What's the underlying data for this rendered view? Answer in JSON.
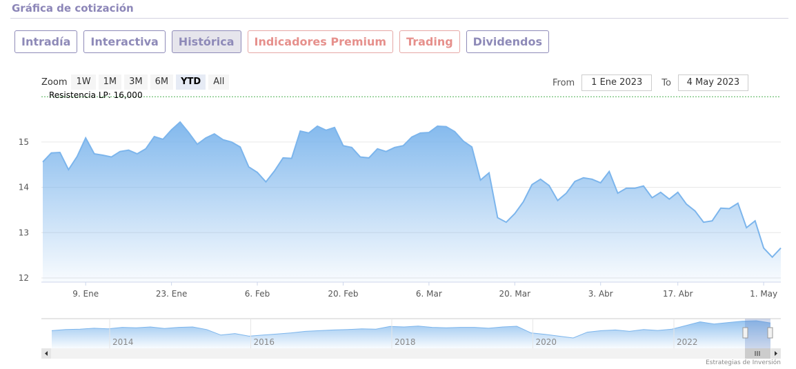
{
  "header": {
    "title": "Gráfica de cotización"
  },
  "tabs": [
    {
      "label": "Intradía",
      "state": "normal"
    },
    {
      "label": "Interactiva",
      "state": "normal"
    },
    {
      "label": "Histórica",
      "state": "active"
    },
    {
      "label": "Indicadores Premium",
      "state": "premium"
    },
    {
      "label": "Trading",
      "state": "premium"
    },
    {
      "label": "Dividendos",
      "state": "normal"
    }
  ],
  "zoom": {
    "label": "Zoom",
    "buttons": [
      "1W",
      "1M",
      "3M",
      "6M",
      "YTD",
      "All"
    ],
    "selected": "YTD"
  },
  "range": {
    "from_label": "From",
    "from": "1 Ene 2023",
    "to_label": "To",
    "to": "4 May 2023"
  },
  "credit": "Estrategias de Inversión",
  "chart_data": {
    "type": "area",
    "title": "",
    "ylim": [
      12,
      16
    ],
    "yticks": [
      12,
      13,
      14,
      15
    ],
    "x_note": "trading-day index since 2 Jan 2023",
    "xticks": [
      {
        "i": 5,
        "label": "9. Ene"
      },
      {
        "i": 15,
        "label": "23. Ene"
      },
      {
        "i": 25,
        "label": "6. Feb"
      },
      {
        "i": 35,
        "label": "20. Feb"
      },
      {
        "i": 45,
        "label": "6. Mar"
      },
      {
        "i": 55,
        "label": "20. Mar"
      },
      {
        "i": 65,
        "label": "3. Abr"
      },
      {
        "i": 74,
        "label": "17. Abr"
      },
      {
        "i": 84,
        "label": "1. May"
      }
    ],
    "plotline": {
      "value": 16,
      "label": "Resistencia LP: 16,000",
      "color": "#4caf50"
    },
    "values": [
      14.56,
      14.76,
      14.77,
      14.39,
      14.68,
      15.09,
      14.74,
      14.71,
      14.67,
      14.79,
      14.82,
      14.74,
      14.85,
      15.12,
      15.06,
      15.27,
      15.44,
      15.21,
      14.95,
      15.09,
      15.18,
      15.05,
      15.0,
      14.89,
      14.45,
      14.33,
      14.12,
      14.36,
      14.65,
      14.64,
      15.24,
      15.2,
      15.35,
      15.26,
      15.32,
      14.92,
      14.88,
      14.67,
      14.65,
      14.85,
      14.79,
      14.88,
      14.92,
      15.11,
      15.2,
      15.21,
      15.35,
      15.34,
      15.23,
      15.02,
      14.89,
      14.16,
      14.32,
      13.33,
      13.23,
      13.42,
      13.68,
      14.06,
      14.18,
      14.04,
      13.71,
      13.87,
      14.13,
      14.21,
      14.18,
      14.1,
      14.35,
      13.87,
      13.98,
      13.98,
      14.03,
      13.77,
      13.89,
      13.74,
      13.89,
      13.63,
      13.48,
      13.23,
      13.26,
      13.54,
      13.53,
      13.65,
      13.11,
      13.26,
      12.66,
      12.46,
      12.66
    ],
    "line_color": "#7cb5ec",
    "navigator": {
      "xticks": [
        "2014",
        "2016",
        "2018",
        "2020",
        "2022"
      ],
      "values": [
        0.55,
        0.6,
        0.62,
        0.66,
        0.63,
        0.7,
        0.68,
        0.72,
        0.65,
        0.7,
        0.72,
        0.6,
        0.35,
        0.42,
        0.3,
        0.35,
        0.4,
        0.45,
        0.52,
        0.55,
        0.58,
        0.6,
        0.63,
        0.62,
        0.74,
        0.72,
        0.76,
        0.7,
        0.68,
        0.7,
        0.7,
        0.66,
        0.72,
        0.75,
        0.45,
        0.38,
        0.3,
        0.22,
        0.48,
        0.55,
        0.58,
        0.52,
        0.6,
        0.56,
        0.62,
        0.78,
        0.95,
        0.85,
        0.92,
        0.98,
        1.0,
        0.9
      ]
    }
  }
}
